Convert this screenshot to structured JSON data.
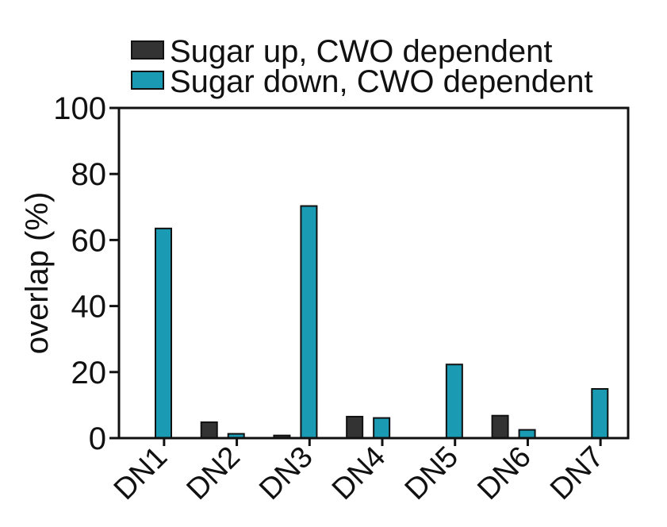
{
  "chart_data": {
    "type": "bar",
    "title": "",
    "xlabel": "",
    "ylabel": "overlap  (%)",
    "ylim": [
      0,
      100
    ],
    "yticks": [
      "0",
      "20",
      "40",
      "60",
      "80",
      "100"
    ],
    "categories": [
      "DN1",
      "DN2",
      "DN3",
      "DN4",
      "DN5",
      "DN6",
      "DN7"
    ],
    "legend_position": "top",
    "grid": false,
    "series": [
      {
        "name": "Sugar up, CWO dependent",
        "color": "#333333",
        "values": [
          0,
          4.8,
          0.8,
          6.5,
          0,
          6.8,
          0
        ]
      },
      {
        "name": "Sugar down, CWO dependent",
        "color": "#1a9bb3",
        "values": [
          63.5,
          1.3,
          70.3,
          6.1,
          22.3,
          2.5,
          14.9
        ]
      }
    ]
  }
}
